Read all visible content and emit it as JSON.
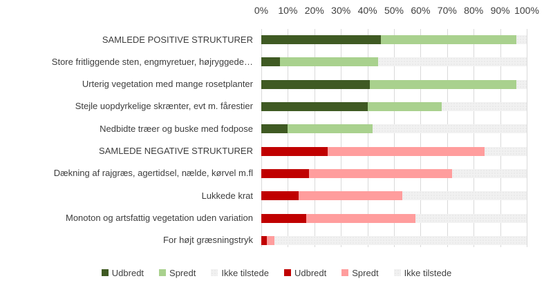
{
  "chart_data": {
    "type": "bar",
    "orientation": "horizontal",
    "stacked": true,
    "title": "",
    "x_ticks": [
      "0%",
      "10%",
      "20%",
      "30%",
      "40%",
      "50%",
      "60%",
      "70%",
      "80%",
      "90%",
      "100%"
    ],
    "x_range": [
      0,
      100
    ],
    "grid": true,
    "legend_position": "bottom",
    "categories": [
      "SAMLEDE POSITIVE STRUKTURER",
      "Store fritliggende sten, engmyretuer, højryggede…",
      "Urterig vegetation med mange rosetplanter",
      "Stejle uopdyrkelige skrænter, evt m. fårestier",
      "Nedbidte træer og buske med fodpose",
      "SAMLEDE NEGATIVE STRUKTURER",
      "Dækning af rajgræs, agertidsel, nælde, kørvel m.fl",
      "Lukkede krat",
      "Monoton og artsfattig vegetation uden variation",
      "For højt græsningstryk"
    ],
    "rows": [
      {
        "label": "SAMLEDE POSITIVE STRUKTURER",
        "group": "positive",
        "udbredt": 45,
        "spredt": 51,
        "ikke_tilstede": 4
      },
      {
        "label": "Store fritliggende sten, engmyretuer, højryggede…",
        "group": "positive",
        "udbredt": 7,
        "spredt": 37,
        "ikke_tilstede": 56
      },
      {
        "label": "Urterig vegetation med mange rosetplanter",
        "group": "positive",
        "udbredt": 41,
        "spredt": 55,
        "ikke_tilstede": 4
      },
      {
        "label": "Stejle uopdyrkelige skrænter, evt m. fårestier",
        "group": "positive",
        "udbredt": 40,
        "spredt": 28,
        "ikke_tilstede": 32
      },
      {
        "label": "Nedbidte træer og buske med fodpose",
        "group": "positive",
        "udbredt": 10,
        "spredt": 32,
        "ikke_tilstede": 58
      },
      {
        "label": "SAMLEDE NEGATIVE STRUKTURER",
        "group": "negative",
        "udbredt": 25,
        "spredt": 59,
        "ikke_tilstede": 16
      },
      {
        "label": "Dækning af rajgræs, agertidsel, nælde, kørvel m.fl",
        "group": "negative",
        "udbredt": 18,
        "spredt": 54,
        "ikke_tilstede": 28
      },
      {
        "label": "Lukkede krat",
        "group": "negative",
        "udbredt": 14,
        "spredt": 39,
        "ikke_tilstede": 47
      },
      {
        "label": "Monoton og artsfattig vegetation uden variation",
        "group": "negative",
        "udbredt": 17,
        "spredt": 41,
        "ikke_tilstede": 42
      },
      {
        "label": "For højt græsningstryk",
        "group": "negative",
        "udbredt": 2,
        "spredt": 3,
        "ikke_tilstede": 95
      }
    ],
    "legend": [
      {
        "label": "Udbredt",
        "color": "#3F5A23"
      },
      {
        "label": "Spredt",
        "color": "#A9D18E"
      },
      {
        "label": "Ikke tilstede",
        "color": "#F1F1F1"
      },
      {
        "label": "Udbredt",
        "color": "#C00000"
      },
      {
        "label": "Spredt",
        "color": "#FF9D9D"
      },
      {
        "label": "Ikke tilstede",
        "color": "#F1F1F1"
      }
    ],
    "colors": {
      "positive_udbredt": "#3F5A23",
      "positive_spredt": "#A9D18E",
      "negative_udbredt": "#C00000",
      "negative_spredt": "#FF9D9D",
      "ikke_tilstede": "#F1F1F1",
      "gridline": "#D9D9D9",
      "text": "#404040",
      "background": "#FFFFFF"
    }
  }
}
